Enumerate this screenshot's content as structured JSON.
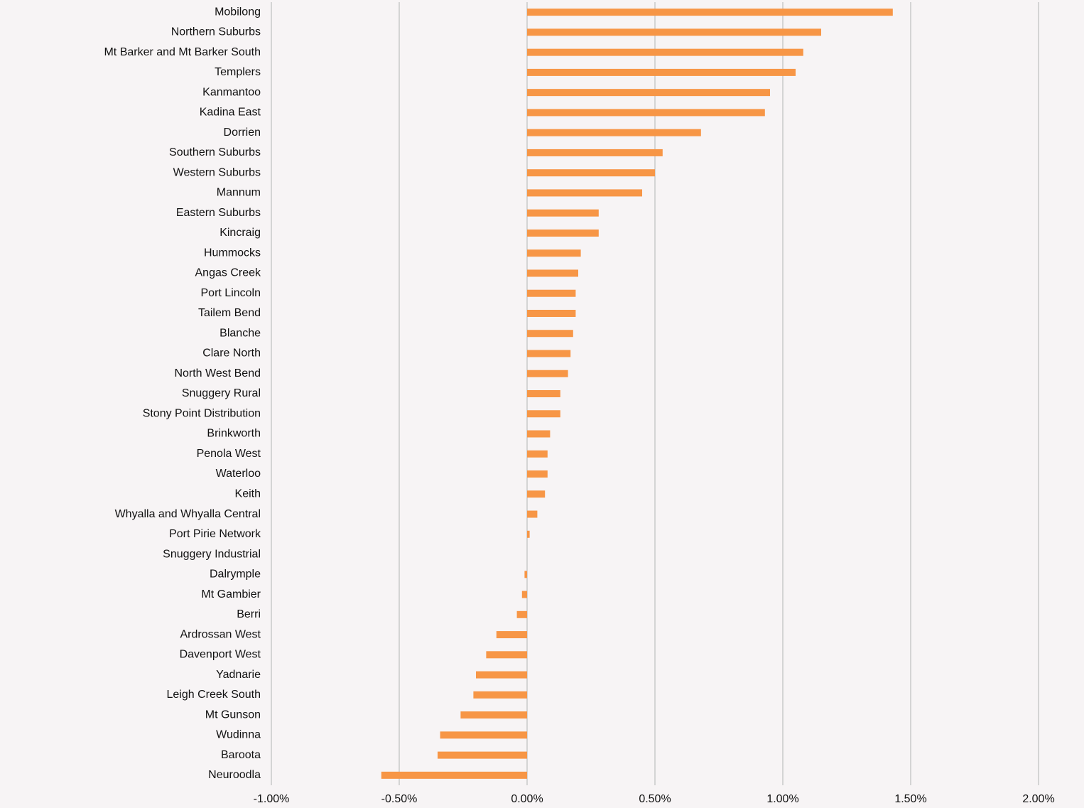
{
  "chart_data": {
    "type": "hbar",
    "categories": [
      "Mobilong",
      "Northern Suburbs",
      "Mt Barker and Mt Barker South",
      "Templers",
      "Kanmantoo",
      "Kadina East",
      "Dorrien",
      "Southern Suburbs",
      "Western Suburbs",
      "Mannum",
      "Eastern Suburbs",
      "Kincraig",
      "Hummocks",
      "Angas Creek",
      "Port Lincoln",
      "Tailem Bend",
      "Blanche",
      "Clare North",
      "North West Bend",
      "Snuggery Rural",
      "Stony Point Distribution",
      "Brinkworth",
      "Penola West",
      "Waterloo",
      "Keith",
      "Whyalla and Whyalla Central",
      "Port Pirie Network",
      "Snuggery Industrial",
      "Dalrymple",
      "Mt Gambier",
      "Berri",
      "Ardrossan West",
      "Davenport West",
      "Yadnarie",
      "Leigh Creek South",
      "Mt Gunson",
      "Wudinna",
      "Baroota",
      "Neuroodla"
    ],
    "values": [
      1.43,
      1.15,
      1.08,
      1.05,
      0.95,
      0.93,
      0.68,
      0.53,
      0.5,
      0.45,
      0.28,
      0.28,
      0.21,
      0.2,
      0.19,
      0.19,
      0.18,
      0.17,
      0.16,
      0.13,
      0.13,
      0.09,
      0.08,
      0.08,
      0.07,
      0.04,
      0.01,
      0,
      -0.01,
      -0.02,
      -0.04,
      -0.12,
      -0.16,
      -0.2,
      -0.21,
      -0.26,
      -0.34,
      -0.35,
      -0.57
    ],
    "color": "#f79646",
    "xlim": [
      -1,
      2
    ],
    "xticks": [
      {
        "value": -1,
        "label": "-1.00%"
      },
      {
        "value": -0.5,
        "label": "-0.50%"
      },
      {
        "value": 0,
        "label": "0.00%"
      },
      {
        "value": 0.5,
        "label": "0.50%"
      },
      {
        "value": 1,
        "label": "1.00%"
      },
      {
        "value": 1.5,
        "label": "1.50%"
      },
      {
        "value": 2,
        "label": "2.00%"
      }
    ],
    "grid": true
  }
}
